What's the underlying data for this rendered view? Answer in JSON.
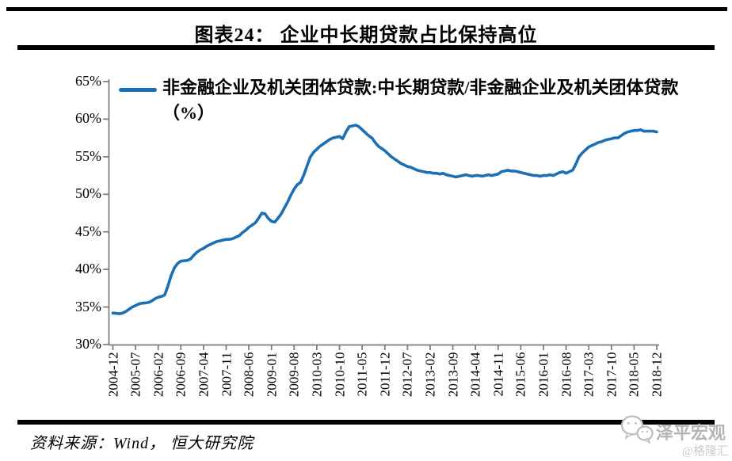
{
  "title": "图表24： 企业中长期贷款占比保持高位",
  "legend": {
    "label": "非金融企业及机关团体贷款:中长期贷款/非金融企业及机关团体贷款（%）"
  },
  "source": {
    "text": "资料来源：Wind， 恒大研究院"
  },
  "watermark": {
    "icon": "wechat-bubbles-icon",
    "brand": "泽平宏观",
    "credit": "@格隆汇"
  },
  "colors": {
    "line": "#1B6FB5",
    "axis": "#7A7A7A",
    "rule": "#000000",
    "watermark": "#B4B4B4",
    "credit": "#CCCCCC"
  },
  "chart_data": {
    "type": "line",
    "title": "图表24： 企业中长期贷款占比保持高位",
    "xlabel": "",
    "ylabel": "",
    "ylim": [
      30,
      65
    ],
    "y_ticks": [
      30,
      35,
      40,
      45,
      50,
      55,
      60,
      65
    ],
    "y_tick_suffix": "%",
    "grid": false,
    "legend_position": "top-left",
    "x_tick_every_months": 7,
    "x_tick_labels": [
      "2004-12",
      "2005-07",
      "2006-02",
      "2006-09",
      "2007-04",
      "2007-11",
      "2008-06",
      "2009-01",
      "2009-08",
      "2010-03",
      "2010-10",
      "2011-05",
      "2011-12",
      "2012-07",
      "2013-02",
      "2013-09",
      "2014-04",
      "2014-11",
      "2015-06",
      "2016-01",
      "2016-08",
      "2017-03",
      "2017-10",
      "2018-05",
      "2018-12"
    ],
    "series": [
      {
        "name": "非金融企业及机关团体贷款:中长期贷款/非金融企业及机关团体贷款（%）",
        "color": "#1B6FB5",
        "start": "2004-12",
        "frequency": "monthly",
        "values": [
          34.2,
          34.15,
          34.1,
          34.2,
          34.4,
          34.7,
          35.0,
          35.2,
          35.4,
          35.5,
          35.55,
          35.6,
          35.8,
          36.1,
          36.3,
          36.4,
          36.6,
          37.8,
          39.2,
          40.2,
          40.8,
          41.1,
          41.15,
          41.2,
          41.4,
          41.9,
          42.3,
          42.6,
          42.8,
          43.1,
          43.3,
          43.5,
          43.7,
          43.8,
          43.9,
          44.0,
          44.0,
          44.1,
          44.3,
          44.5,
          44.9,
          45.2,
          45.6,
          45.9,
          46.2,
          46.8,
          47.5,
          47.4,
          46.8,
          46.4,
          46.3,
          46.8,
          47.4,
          48.2,
          49.0,
          49.9,
          50.7,
          51.3,
          51.6,
          52.6,
          53.8,
          55.0,
          55.6,
          56.0,
          56.4,
          56.7,
          57.0,
          57.3,
          57.5,
          57.6,
          57.7,
          57.4,
          58.3,
          59.0,
          59.1,
          59.2,
          59.0,
          58.6,
          58.2,
          57.8,
          57.5,
          56.9,
          56.4,
          56.1,
          55.8,
          55.4,
          55.0,
          54.7,
          54.4,
          54.1,
          53.9,
          53.7,
          53.6,
          53.4,
          53.2,
          53.1,
          53.0,
          52.9,
          52.9,
          52.8,
          52.8,
          52.7,
          52.8,
          52.6,
          52.5,
          52.4,
          52.3,
          52.4,
          52.5,
          52.6,
          52.5,
          52.4,
          52.5,
          52.5,
          52.4,
          52.5,
          52.6,
          52.5,
          52.6,
          52.7,
          53.0,
          53.1,
          53.2,
          53.1,
          53.1,
          53.0,
          52.9,
          52.8,
          52.7,
          52.6,
          52.5,
          52.5,
          52.4,
          52.5,
          52.5,
          52.6,
          52.5,
          52.7,
          52.9,
          53.0,
          52.8,
          53.0,
          53.2,
          54.0,
          55.0,
          55.5,
          55.9,
          56.3,
          56.5,
          56.7,
          56.9,
          57.0,
          57.2,
          57.3,
          57.4,
          57.5,
          57.5,
          57.8,
          58.1,
          58.3,
          58.4,
          58.5,
          58.5,
          58.6,
          58.4,
          58.4,
          58.4,
          58.4,
          58.3
        ]
      }
    ]
  }
}
